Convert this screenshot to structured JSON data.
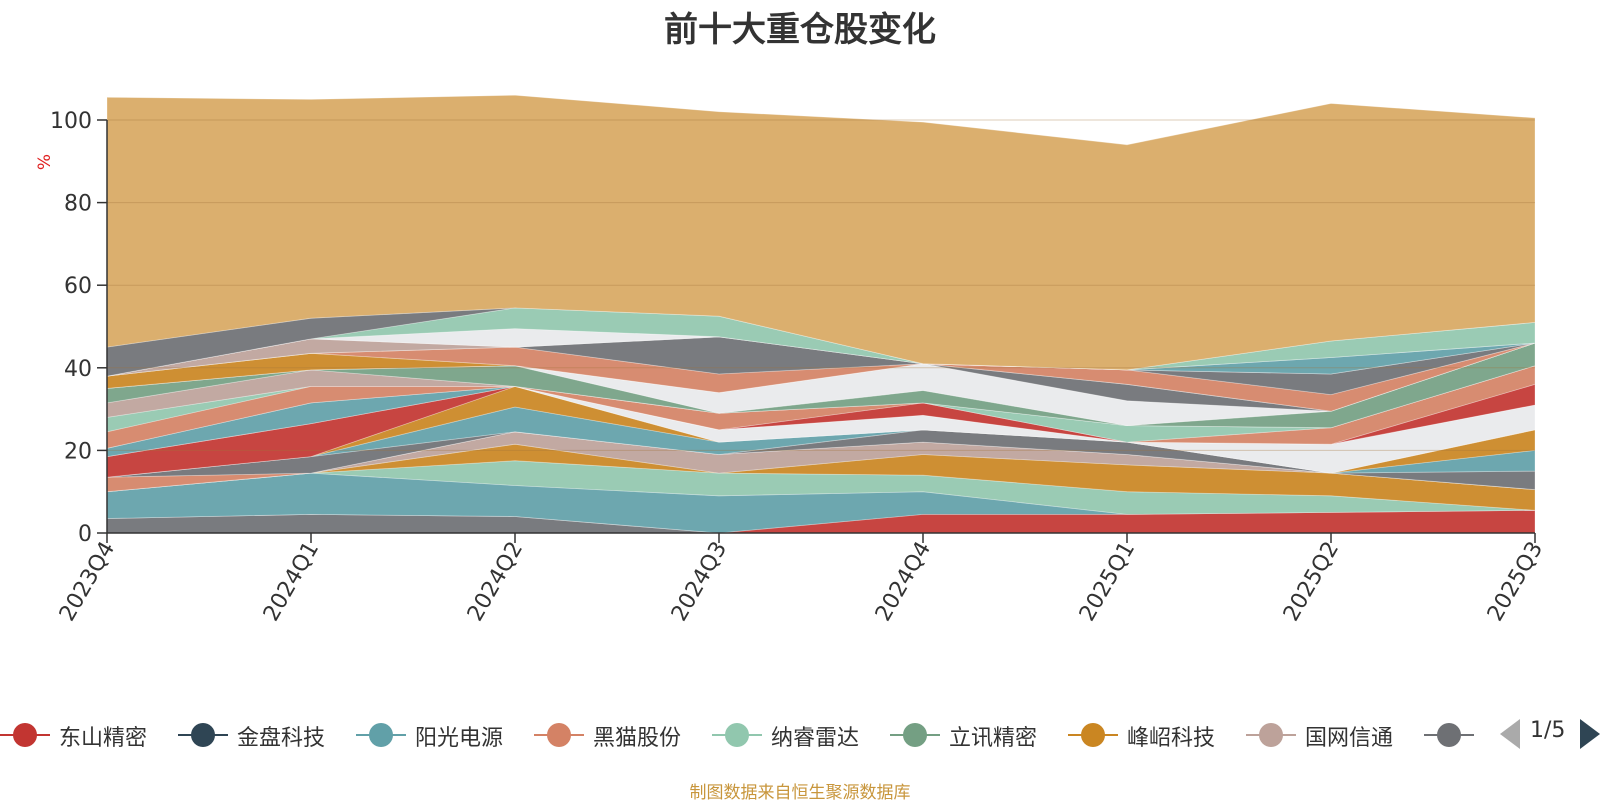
{
  "title": "前十大重仓股变化",
  "source_note": "制图数据来自恒生聚源数据库",
  "pager": {
    "text": "1/5"
  },
  "legend_items": [
    {
      "name": "东山精密",
      "color": "#c23531"
    },
    {
      "name": "金盘科技",
      "color": "#2f4554"
    },
    {
      "name": "阳光电源",
      "color": "#61a0a8"
    },
    {
      "name": "黑猫股份",
      "color": "#d48265"
    },
    {
      "name": "纳睿雷达",
      "color": "#91c7ae"
    },
    {
      "name": "立讯精密",
      "color": "#749f83"
    },
    {
      "name": "峰岹科技",
      "color": "#ca8622"
    },
    {
      "name": "国网信通",
      "color": "#bda29a"
    },
    {
      "name": "",
      "color": "#6e7074"
    }
  ],
  "chart_data": {
    "type": "area",
    "title": "前十大重仓股变化",
    "ylabel": "%",
    "ylim": [
      0,
      100
    ],
    "yticks": [
      "0",
      "20",
      "40",
      "60",
      "80",
      "100"
    ],
    "categories": [
      "2023Q4",
      "2024Q1",
      "2024Q2",
      "2024Q3",
      "2024Q4",
      "2025Q1",
      "2025Q2",
      "2025Q3"
    ],
    "stacked": true,
    "grid": true,
    "legend_position": "bottom",
    "series": [
      {
        "color": "#6e7074",
        "values": [
          3.5,
          4.5,
          4.0,
          0,
          0,
          0,
          0,
          0
        ]
      },
      {
        "color": "#c23531",
        "values": [
          0,
          0,
          0,
          0,
          4.5,
          4.5,
          5.0,
          5.5
        ]
      },
      {
        "color": "#61a0a8",
        "values": [
          6.5,
          10.0,
          7.5,
          9.0,
          5.5,
          0,
          0,
          0
        ]
      },
      {
        "color": "#91c7ae",
        "values": [
          0,
          0,
          6.0,
          5.5,
          4.0,
          5.5,
          4.0,
          0
        ]
      },
      {
        "color": "#ca8622",
        "values": [
          0,
          0,
          4.0,
          0,
          5.0,
          6.5,
          5.5,
          5.0
        ]
      },
      {
        "color": "#bda29a",
        "values": [
          0,
          0,
          3.0,
          4.5,
          3.0,
          2.5,
          0,
          0
        ]
      },
      {
        "color": "#d48265",
        "values": [
          3.5,
          0,
          0,
          0,
          0,
          0,
          0,
          0
        ]
      },
      {
        "color": "#6e7074",
        "values": [
          0,
          4.0,
          0,
          0,
          3.0,
          3.0,
          0,
          4.5
        ]
      },
      {
        "color": "#61a0a8",
        "values": [
          0,
          0,
          6.0,
          3.0,
          0,
          0,
          0,
          5.0
        ]
      },
      {
        "color": "#ca8622",
        "values": [
          0,
          0,
          5.0,
          0,
          0,
          0,
          0,
          5.0
        ]
      },
      {
        "color": "#c23531",
        "values": [
          5.0,
          8.0,
          0,
          0,
          0,
          0,
          0,
          0
        ]
      },
      {
        "color": "#e8e9ec",
        "values": [
          0,
          0,
          0,
          3.0,
          3.5,
          0,
          7.0,
          6.0
        ]
      },
      {
        "color": "#61a0a8",
        "values": [
          2.0,
          5.0,
          0,
          0,
          0,
          0,
          0,
          0
        ]
      },
      {
        "color": "#c23531",
        "values": [
          0,
          0,
          0,
          0,
          3.0,
          0,
          0,
          5.0
        ]
      },
      {
        "color": "#d48265",
        "values": [
          4.0,
          4.0,
          0,
          4.0,
          0,
          0,
          4.0,
          4.5
        ]
      },
      {
        "color": "#91c7ae",
        "values": [
          3.5,
          0,
          0,
          0,
          0,
          4.0,
          0,
          0
        ]
      },
      {
        "color": "#bda29a",
        "values": [
          3.5,
          4.0,
          0,
          0,
          0,
          0,
          0,
          0
        ]
      },
      {
        "color": "#749f83",
        "values": [
          3.5,
          0,
          5.0,
          0,
          3.0,
          0,
          4.0,
          5.5
        ]
      },
      {
        "color": "#e8e9ec",
        "values": [
          0,
          0,
          0,
          5.0,
          6.5,
          6.0,
          0,
          0
        ]
      },
      {
        "color": "#6e7074",
        "values": [
          0,
          0,
          0,
          0,
          0,
          4.0,
          0,
          0
        ]
      },
      {
        "color": "#ca8622",
        "values": [
          3.0,
          4.0,
          0,
          0,
          0,
          0,
          0,
          0
        ]
      },
      {
        "color": "#d48265",
        "values": [
          0,
          0,
          4.5,
          4.5,
          0,
          3.5,
          4.0,
          0
        ]
      },
      {
        "color": "#6e7074",
        "values": [
          0,
          0,
          0,
          9.0,
          0,
          0,
          5.0,
          0
        ]
      },
      {
        "color": "#bda29a",
        "values": [
          0,
          3.5,
          0,
          0,
          0,
          0,
          0,
          0
        ]
      },
      {
        "color": "#61a0a8",
        "values": [
          0,
          0,
          0,
          0,
          0,
          0,
          4.0,
          0
        ]
      },
      {
        "color": "#e8e9ec",
        "values": [
          0,
          0,
          4.5,
          0,
          0,
          0,
          0,
          0
        ]
      },
      {
        "color": "#91c7ae",
        "values": [
          0,
          0,
          5.0,
          5.0,
          0,
          0,
          4.0,
          5.0
        ]
      },
      {
        "color": "#6e7074",
        "values": [
          7.0,
          5.0,
          0,
          0,
          0,
          0,
          0,
          0
        ]
      },
      {
        "color": "#d8a862",
        "values": [
          60.5,
          53.0,
          51.5,
          49.5,
          58.5,
          54.5,
          57.5,
          49.5
        ]
      }
    ]
  }
}
